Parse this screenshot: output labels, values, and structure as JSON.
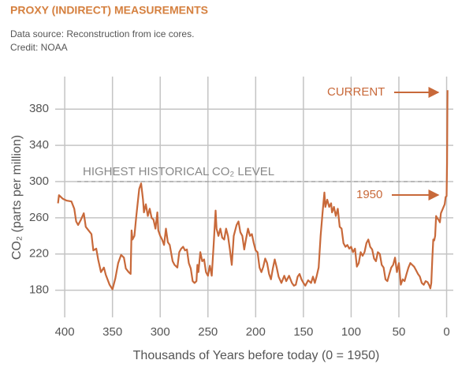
{
  "chart_data": {
    "type": "line",
    "title": "PROXY (INDIRECT) MEASUREMENTS",
    "subtitle": [
      "Data source: Reconstruction from ice cores.",
      "Credit: NOAA"
    ],
    "x_label": "Thousands of Years before today (0 = 1950)",
    "y_label": "CO₂ (parts per million)",
    "color": "#c8693a",
    "grid": true,
    "xlim": [
      410,
      -7
    ],
    "ylim": [
      150,
      416
    ],
    "xticks": [
      400,
      350,
      300,
      250,
      200,
      150,
      100,
      50,
      0
    ],
    "yticks": [
      180,
      220,
      260,
      300,
      340,
      380
    ],
    "reference_line": {
      "value": 300,
      "label": "HIGHEST HISTORICAL CO₂ LEVEL"
    },
    "annotations": [
      "CURRENT",
      "1950"
    ],
    "x": [
      407,
      406,
      402,
      398,
      393,
      390,
      388,
      386,
      383,
      380,
      378,
      375,
      372,
      370,
      367,
      365,
      362,
      359,
      357,
      353,
      350,
      347,
      344,
      341,
      338,
      336,
      333,
      331,
      330,
      329,
      327,
      325,
      322,
      320,
      318,
      317,
      315,
      313,
      311,
      309,
      307,
      305,
      303,
      302,
      300,
      298,
      296,
      294,
      292,
      290,
      287,
      285,
      282,
      280,
      278,
      276,
      274,
      272,
      270,
      268,
      266,
      264,
      262,
      261,
      260,
      258,
      256,
      254,
      252,
      250,
      248,
      246,
      244,
      242,
      241,
      239,
      237,
      235,
      233,
      231,
      229,
      227,
      225,
      223,
      220,
      218,
      216,
      214,
      212,
      210,
      208,
      206,
      204,
      202,
      200,
      198,
      196,
      194,
      192,
      190,
      188,
      186,
      184,
      182,
      180,
      178,
      176,
      173,
      170,
      168,
      165,
      162,
      160,
      158,
      156,
      154,
      152,
      150,
      148,
      145,
      142,
      140,
      138,
      136,
      134,
      132,
      130,
      128,
      127,
      125,
      123,
      121,
      120,
      118,
      116,
      114,
      112,
      110,
      108,
      106,
      104,
      102,
      100,
      98,
      96,
      94,
      92,
      90,
      88,
      86,
      84,
      82,
      80,
      78,
      76,
      74,
      72,
      70,
      68,
      66,
      64,
      62,
      60,
      58,
      56,
      54,
      52,
      50,
      48,
      46,
      44,
      42,
      40,
      38,
      36,
      34,
      32,
      30,
      28,
      26,
      24,
      22,
      20,
      18,
      17,
      16,
      15,
      14,
      13,
      12,
      11,
      10,
      8,
      7,
      6,
      4,
      2,
      1,
      0,
      -0.5,
      -0.8,
      -1
    ],
    "values": [
      276,
      285,
      281,
      279,
      278,
      270,
      256,
      252,
      258,
      265,
      250,
      246,
      242,
      224,
      226,
      214,
      200,
      205,
      197,
      186,
      181,
      193,
      210,
      219,
      216,
      204,
      200,
      198,
      246,
      236,
      240,
      262,
      292,
      298,
      280,
      266,
      275,
      262,
      270,
      260,
      258,
      248,
      266,
      246,
      240,
      236,
      230,
      248,
      233,
      230,
      212,
      208,
      205,
      222,
      226,
      228,
      224,
      225,
      210,
      204,
      190,
      188,
      190,
      208,
      200,
      222,
      212,
      214,
      200,
      196,
      207,
      196,
      230,
      268,
      248,
      240,
      248,
      238,
      236,
      248,
      240,
      225,
      208,
      240,
      252,
      256,
      244,
      240,
      225,
      237,
      248,
      240,
      242,
      232,
      224,
      222,
      205,
      200,
      206,
      215,
      210,
      198,
      192,
      204,
      214,
      205,
      195,
      188,
      196,
      190,
      196,
      188,
      185,
      186,
      195,
      198,
      192,
      188,
      185,
      191,
      188,
      195,
      188,
      196,
      205,
      240,
      265,
      288,
      272,
      280,
      272,
      276,
      266,
      272,
      262,
      270,
      250,
      248,
      232,
      228,
      230,
      226,
      228,
      222,
      226,
      206,
      210,
      222,
      218,
      222,
      232,
      236,
      228,
      225,
      215,
      212,
      222,
      220,
      208,
      205,
      192,
      190,
      198,
      205,
      208,
      216,
      200,
      210,
      186,
      192,
      190,
      198,
      205,
      210,
      208,
      206,
      202,
      198,
      195,
      188,
      186,
      190,
      189,
      185,
      182,
      188,
      215,
      236,
      235,
      240,
      262,
      260,
      257,
      255,
      265,
      270,
      275,
      283,
      284,
      320,
      380,
      401
    ]
  }
}
